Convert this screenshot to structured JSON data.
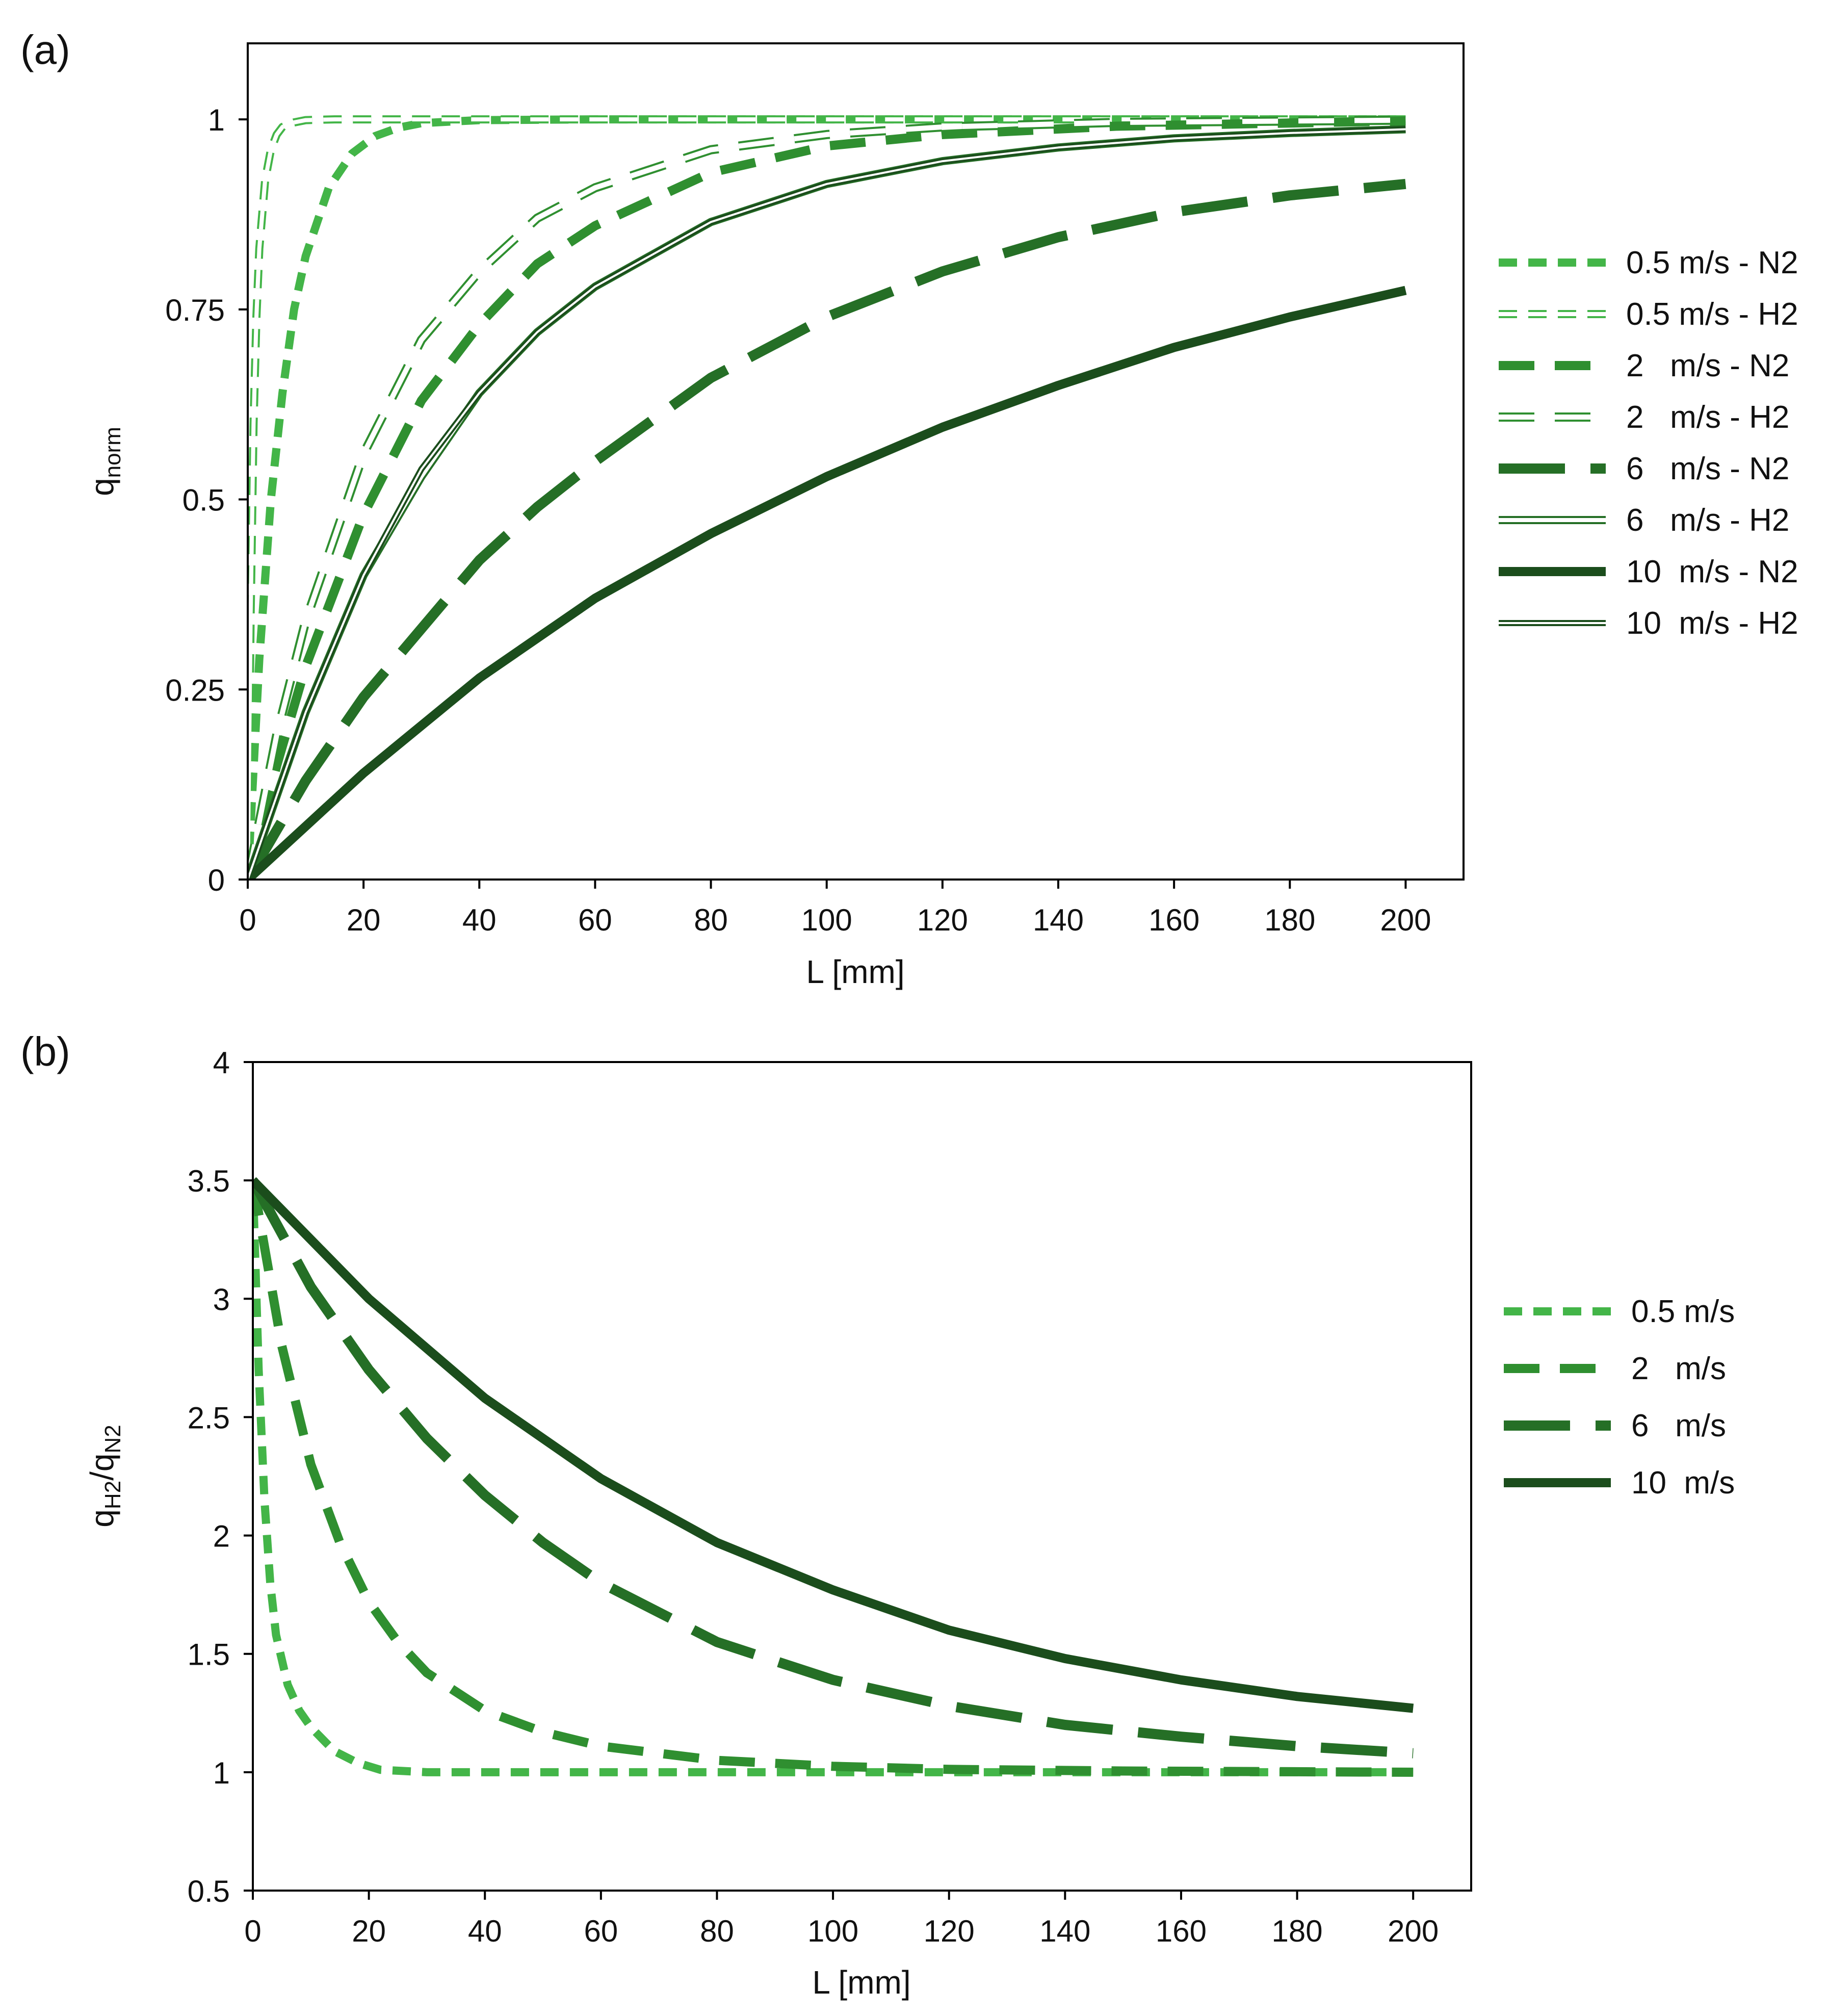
{
  "colors": {
    "light": "#43b548",
    "mid": "#2f8f30",
    "dark": "#256f26",
    "darkest": "#1b4d1c"
  },
  "chart_data": [
    {
      "panel_label": "(a)",
      "type": "line",
      "xlabel": "L [mm]",
      "ylabel_main": "q",
      "ylabel_sub": "norm",
      "xlim": [
        0,
        210
      ],
      "ylim": [
        0,
        1.1
      ],
      "xticks": [
        0,
        20,
        40,
        60,
        80,
        100,
        120,
        140,
        160,
        180,
        200
      ],
      "xtick_labels": [
        "0",
        "20",
        "40",
        "60",
        "80",
        "100",
        "120",
        "140",
        "160",
        "180",
        "200"
      ],
      "yticks": [
        0,
        0.25,
        0.5,
        0.75,
        1
      ],
      "ytick_labels": [
        "0",
        "0.25",
        "0.5",
        "0.75",
        "1"
      ],
      "legend_position": "right",
      "series": [
        {
          "name": "0.5 m/s - N2",
          "style": "short-dash",
          "color": "light",
          "x": [
            0,
            2,
            4,
            6,
            8,
            10,
            14,
            18,
            22,
            26,
            30,
            40,
            60,
            100,
            200
          ],
          "y": [
            0,
            0.29,
            0.5,
            0.64,
            0.75,
            0.82,
            0.91,
            0.955,
            0.978,
            0.989,
            0.995,
            0.999,
            1.0,
            1.0,
            1.0
          ]
        },
        {
          "name": "0.5 m/s - H2",
          "style": "short-dash-hollow",
          "color": "light",
          "x": [
            0,
            0.5,
            1,
            1.5,
            2,
            3,
            4,
            5,
            6,
            8,
            10,
            15,
            20,
            200
          ],
          "y": [
            0,
            0.35,
            0.6,
            0.74,
            0.83,
            0.92,
            0.96,
            0.98,
            0.99,
            0.996,
            0.999,
            1.0,
            1.0,
            1.0
          ]
        },
        {
          "name": "2   m/s - N2",
          "style": "dash",
          "color": "mid",
          "x": [
            0,
            5,
            10,
            20,
            30,
            40,
            50,
            60,
            80,
            100,
            120,
            150,
            200
          ],
          "y": [
            0,
            0.15,
            0.28,
            0.48,
            0.63,
            0.73,
            0.81,
            0.86,
            0.93,
            0.965,
            0.98,
            0.991,
            0.998
          ]
        },
        {
          "name": "2   m/s - H2",
          "style": "dash-hollow",
          "color": "mid",
          "x": [
            0,
            5,
            10,
            20,
            30,
            40,
            50,
            60,
            80,
            100,
            120,
            150,
            200
          ],
          "y": [
            0,
            0.19,
            0.34,
            0.56,
            0.71,
            0.8,
            0.87,
            0.91,
            0.96,
            0.98,
            0.99,
            0.996,
            0.999
          ]
        },
        {
          "name": "6   m/s - N2",
          "style": "long-dash",
          "color": "dark",
          "x": [
            0,
            10,
            20,
            30,
            40,
            50,
            60,
            80,
            100,
            120,
            140,
            160,
            180,
            200
          ],
          "y": [
            0,
            0.13,
            0.24,
            0.33,
            0.42,
            0.49,
            0.55,
            0.66,
            0.74,
            0.8,
            0.845,
            0.878,
            0.9,
            0.915
          ]
        },
        {
          "name": "6   m/s - H2",
          "style": "long-dash-hollow",
          "color": "dark",
          "x": [
            0,
            10,
            20,
            30,
            40,
            50,
            60,
            80,
            100,
            120,
            140,
            160,
            180,
            200
          ],
          "y": [
            0,
            0.22,
            0.4,
            0.53,
            0.64,
            0.72,
            0.78,
            0.865,
            0.915,
            0.945,
            0.963,
            0.975,
            0.982,
            0.987
          ]
        },
        {
          "name": "10  m/s - N2",
          "style": "solid",
          "color": "darkest",
          "x": [
            0,
            10,
            20,
            40,
            60,
            80,
            100,
            120,
            140,
            160,
            180,
            200
          ],
          "y": [
            0,
            0.07,
            0.14,
            0.265,
            0.37,
            0.455,
            0.53,
            0.595,
            0.65,
            0.7,
            0.74,
            0.775
          ]
        },
        {
          "name": "10  m/s - H2",
          "style": "solid-hollow",
          "color": "darkest",
          "x": [
            0,
            10,
            20,
            30,
            40,
            50,
            60,
            80,
            100,
            120,
            140,
            160,
            180,
            200
          ],
          "y": [
            0,
            0.22,
            0.4,
            0.54,
            0.64,
            0.72,
            0.78,
            0.865,
            0.915,
            0.945,
            0.963,
            0.975,
            0.982,
            0.987
          ]
        }
      ]
    },
    {
      "panel_label": "(b)",
      "type": "line",
      "xlabel": "L [mm]",
      "ylabel_parts": [
        "q",
        "H2",
        "/q",
        "N2"
      ],
      "xlim": [
        0,
        210
      ],
      "ylim": [
        0.5,
        4
      ],
      "xticks": [
        0,
        20,
        40,
        60,
        80,
        100,
        120,
        140,
        160,
        180,
        200
      ],
      "xtick_labels": [
        "0",
        "20",
        "40",
        "60",
        "80",
        "100",
        "120",
        "140",
        "160",
        "180",
        "200"
      ],
      "yticks": [
        0.5,
        1,
        1.5,
        2,
        2.5,
        3,
        3.5,
        4
      ],
      "ytick_labels": [
        "0.5",
        "1",
        "1.5",
        "2",
        "2.5",
        "3",
        "3.5",
        "4"
      ],
      "legend_position": "right",
      "series": [
        {
          "name": "0.5 m/s",
          "style": "short-dash",
          "color": "light",
          "x": [
            0,
            1,
            2,
            3,
            4,
            6,
            8,
            10,
            14,
            18,
            22,
            30,
            40,
            200
          ],
          "y": [
            3.5,
            2.7,
            2.15,
            1.8,
            1.58,
            1.37,
            1.26,
            1.19,
            1.09,
            1.04,
            1.01,
            1.0,
            1.0,
            1.0
          ]
        },
        {
          "name": "2   m/s",
          "style": "dash",
          "color": "mid",
          "x": [
            0,
            5,
            10,
            15,
            20,
            25,
            30,
            40,
            50,
            60,
            80,
            100,
            120,
            150,
            200
          ],
          "y": [
            3.5,
            2.8,
            2.3,
            1.97,
            1.72,
            1.55,
            1.42,
            1.26,
            1.17,
            1.11,
            1.05,
            1.025,
            1.012,
            1.005,
            1.0
          ]
        },
        {
          "name": "6   m/s",
          "style": "long-dash",
          "color": "dark",
          "x": [
            0,
            10,
            20,
            30,
            40,
            50,
            60,
            80,
            100,
            120,
            140,
            160,
            180,
            200
          ],
          "y": [
            3.5,
            3.05,
            2.7,
            2.41,
            2.17,
            1.97,
            1.8,
            1.55,
            1.39,
            1.28,
            1.2,
            1.15,
            1.11,
            1.08
          ]
        },
        {
          "name": "10  m/s",
          "style": "solid",
          "color": "darkest",
          "x": [
            0,
            10,
            20,
            40,
            60,
            80,
            100,
            120,
            140,
            160,
            180,
            200
          ],
          "y": [
            3.5,
            3.25,
            3.0,
            2.58,
            2.24,
            1.97,
            1.77,
            1.6,
            1.48,
            1.39,
            1.32,
            1.27
          ]
        }
      ]
    }
  ]
}
